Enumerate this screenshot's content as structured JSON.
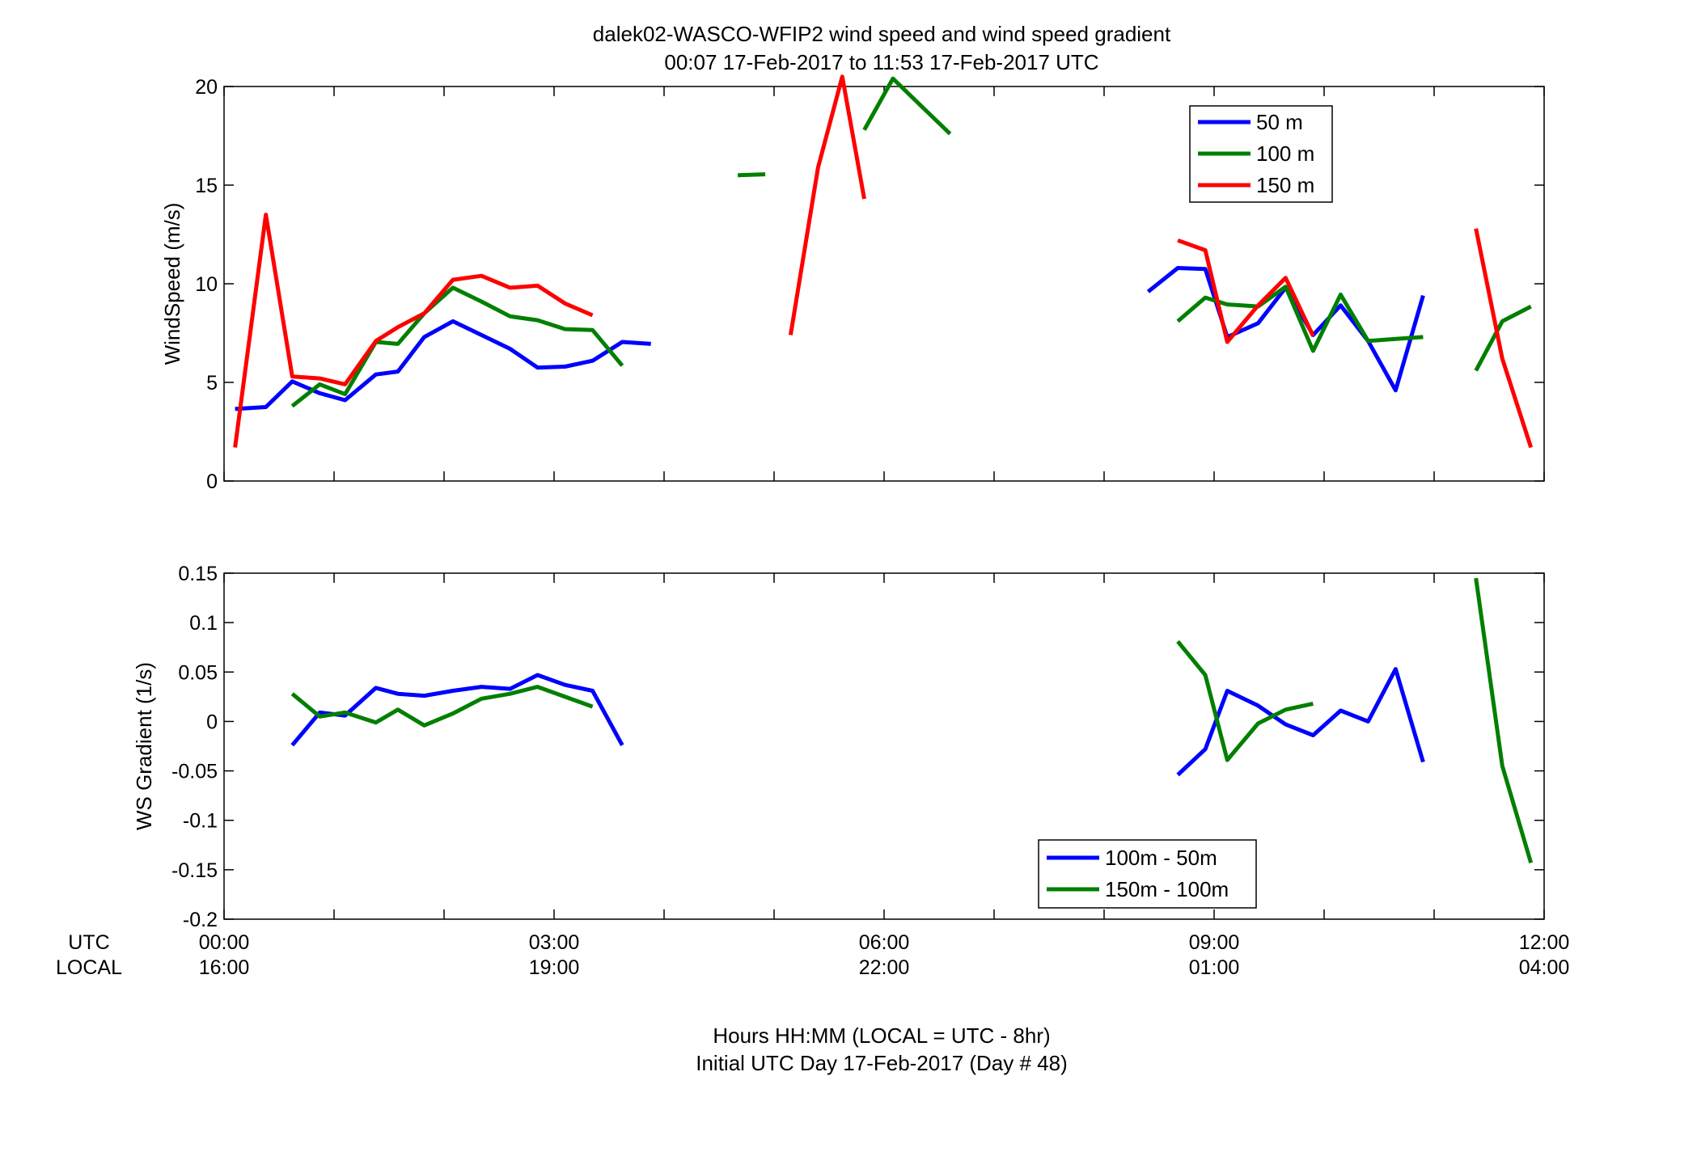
{
  "figure": {
    "title_line1": "dalek02-WASCO-WFIP2  wind speed and wind speed gradient",
    "title_line2": "00:07 17-Feb-2017 to 11:53 17-Feb-2017  UTC",
    "xlabel_line1": "Hours HH:MM  (LOCAL = UTC - 8hr)",
    "xlabel_line2": "Initial UTC Day 17-Feb-2017 (Day # 48)",
    "utc_label": "UTC",
    "local_label": "LOCAL"
  },
  "x_ticks": {
    "hours": [
      0,
      3,
      6,
      9,
      12
    ],
    "utc_labels": [
      "00:00",
      "03:00",
      "06:00",
      "09:00",
      "12:00"
    ],
    "local_labels": [
      "16:00",
      "19:00",
      "22:00",
      "01:00",
      "04:00"
    ]
  },
  "colors": {
    "blue": "#0000ff",
    "green": "#007f00",
    "red": "#ff0000"
  },
  "chart_data": [
    {
      "type": "line",
      "title": "",
      "xlabel": "Hours HH:MM",
      "ylabel": "WindSpeed (m/s)",
      "xlim": [
        0,
        12
      ],
      "ylim": [
        0,
        20
      ],
      "yticks": [
        0,
        5,
        10,
        15,
        20
      ],
      "ytick_labels": [
        "0",
        "5",
        "10",
        "15",
        "20"
      ],
      "legend_position": "top-right",
      "series": [
        {
          "name": "50 m",
          "color": "#0000ff",
          "segments": [
            [
              [
                0.1,
                3.65
              ],
              [
                0.38,
                3.75
              ],
              [
                0.62,
                5.05
              ],
              [
                0.87,
                4.45
              ],
              [
                1.1,
                4.1
              ],
              [
                1.38,
                5.4
              ],
              [
                1.58,
                5.55
              ],
              [
                1.82,
                7.3
              ],
              [
                2.08,
                8.1
              ],
              [
                2.34,
                7.4
              ],
              [
                2.6,
                6.7
              ],
              [
                2.85,
                5.75
              ],
              [
                3.1,
                5.8
              ],
              [
                3.35,
                6.1
              ],
              [
                3.62,
                7.05
              ],
              [
                3.88,
                6.95
              ]
            ],
            [
              [
                8.4,
                9.6
              ],
              [
                8.67,
                10.8
              ],
              [
                8.92,
                10.75
              ],
              [
                9.12,
                7.3
              ],
              [
                9.4,
                8.0
              ],
              [
                9.65,
                9.8
              ],
              [
                9.9,
                7.4
              ],
              [
                10.15,
                8.9
              ],
              [
                10.4,
                7.1
              ],
              [
                10.65,
                4.6
              ],
              [
                10.9,
                9.4
              ]
            ]
          ]
        },
        {
          "name": "100 m",
          "color": "#007f00",
          "segments": [
            [
              [
                0.62,
                3.8
              ],
              [
                0.87,
                4.9
              ],
              [
                1.1,
                4.4
              ],
              [
                1.38,
                7.05
              ],
              [
                1.58,
                6.95
              ],
              [
                1.82,
                8.5
              ],
              [
                2.08,
                9.8
              ],
              [
                2.34,
                9.1
              ],
              [
                2.6,
                8.35
              ],
              [
                2.85,
                8.15
              ],
              [
                3.1,
                7.7
              ],
              [
                3.35,
                7.65
              ],
              [
                3.62,
                5.85
              ]
            ],
            [
              [
                4.67,
                15.5
              ],
              [
                4.92,
                15.55
              ]
            ],
            [
              [
                5.82,
                17.8
              ],
              [
                6.08,
                20.4
              ],
              [
                6.34,
                19.0
              ],
              [
                6.6,
                17.6
              ]
            ],
            [
              [
                8.67,
                8.1
              ],
              [
                8.92,
                9.3
              ],
              [
                9.12,
                8.95
              ],
              [
                9.4,
                8.85
              ],
              [
                9.65,
                9.85
              ],
              [
                9.9,
                6.6
              ],
              [
                10.15,
                9.45
              ],
              [
                10.4,
                7.1
              ],
              [
                10.65,
                7.2
              ],
              [
                10.9,
                7.3
              ]
            ],
            [
              [
                11.38,
                5.6
              ],
              [
                11.62,
                8.1
              ],
              [
                11.88,
                8.85
              ]
            ]
          ]
        },
        {
          "name": "150 m",
          "color": "#ff0000",
          "segments": [
            [
              [
                0.1,
                1.7
              ],
              [
                0.38,
                13.5
              ],
              [
                0.62,
                5.3
              ],
              [
                0.87,
                5.2
              ],
              [
                1.1,
                4.9
              ],
              [
                1.38,
                7.1
              ],
              [
                1.58,
                7.8
              ],
              [
                1.82,
                8.5
              ],
              [
                2.08,
                10.2
              ],
              [
                2.34,
                10.4
              ],
              [
                2.6,
                9.8
              ],
              [
                2.85,
                9.9
              ],
              [
                3.1,
                9.0
              ],
              [
                3.35,
                8.4
              ]
            ],
            [
              [
                5.15,
                7.4
              ],
              [
                5.4,
                15.9
              ],
              [
                5.62,
                20.5
              ],
              [
                5.82,
                14.3
              ]
            ],
            [
              [
                8.67,
                12.2
              ],
              [
                8.92,
                11.7
              ],
              [
                9.12,
                7.05
              ],
              [
                9.4,
                8.9
              ],
              [
                9.65,
                10.3
              ],
              [
                9.9,
                7.35
              ]
            ],
            [
              [
                11.38,
                12.8
              ],
              [
                11.62,
                6.2
              ],
              [
                11.88,
                1.7
              ]
            ]
          ]
        }
      ]
    },
    {
      "type": "line",
      "title": "",
      "xlabel": "Hours HH:MM",
      "ylabel": "WS Gradient (1/s)",
      "xlim": [
        0,
        12
      ],
      "ylim": [
        -0.2,
        0.15
      ],
      "yticks": [
        -0.2,
        -0.15,
        -0.1,
        -0.05,
        0,
        0.05,
        0.1,
        0.15
      ],
      "ytick_labels": [
        "-0.2",
        "-0.15",
        "-0.1",
        "-0.05",
        "0",
        "0.05",
        "0.1",
        "0.15"
      ],
      "legend_position": "bottom-right",
      "series": [
        {
          "name": "100m - 50m",
          "color": "#0000ff",
          "segments": [
            [
              [
                0.62,
                -0.024
              ],
              [
                0.87,
                0.009
              ],
              [
                1.1,
                0.006
              ],
              [
                1.38,
                0.034
              ],
              [
                1.58,
                0.028
              ],
              [
                1.82,
                0.026
              ],
              [
                2.08,
                0.031
              ],
              [
                2.34,
                0.035
              ],
              [
                2.6,
                0.033
              ],
              [
                2.85,
                0.047
              ],
              [
                3.1,
                0.037
              ],
              [
                3.35,
                0.031
              ],
              [
                3.62,
                -0.024
              ]
            ],
            [
              [
                8.67,
                -0.054
              ],
              [
                8.92,
                -0.028
              ],
              [
                9.12,
                0.031
              ],
              [
                9.4,
                0.016
              ],
              [
                9.65,
                -0.003
              ],
              [
                9.9,
                -0.014
              ],
              [
                10.15,
                0.011
              ],
              [
                10.4,
                0.0
              ],
              [
                10.65,
                0.053
              ],
              [
                10.9,
                -0.041
              ]
            ]
          ]
        },
        {
          "name": "150m - 100m",
          "color": "#007f00",
          "segments": [
            [
              [
                0.62,
                0.028
              ],
              [
                0.87,
                0.005
              ],
              [
                1.1,
                0.009
              ],
              [
                1.38,
                -0.001
              ],
              [
                1.58,
                0.012
              ],
              [
                1.82,
                -0.004
              ],
              [
                2.08,
                0.008
              ],
              [
                2.34,
                0.023
              ],
              [
                2.6,
                0.028
              ],
              [
                2.85,
                0.035
              ],
              [
                3.1,
                0.025
              ],
              [
                3.35,
                0.015
              ]
            ],
            [
              [
                8.67,
                0.081
              ],
              [
                8.92,
                0.047
              ],
              [
                9.12,
                -0.039
              ],
              [
                9.4,
                -0.002
              ],
              [
                9.65,
                0.012
              ],
              [
                9.9,
                0.018
              ]
            ],
            [
              [
                11.38,
                0.145
              ],
              [
                11.62,
                -0.045
              ],
              [
                11.88,
                -0.143
              ]
            ]
          ]
        }
      ]
    }
  ]
}
